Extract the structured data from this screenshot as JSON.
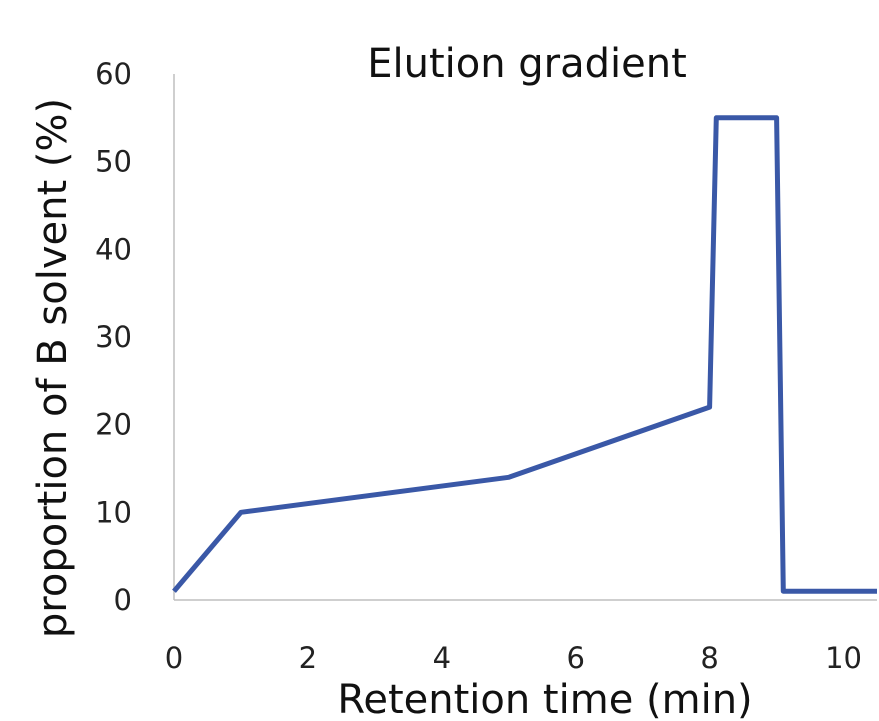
{
  "chart_data": {
    "type": "line",
    "title": "Elution gradient",
    "xlabel": "Retention time (min)",
    "ylabel": "proportion of B solvent (%)",
    "xlim": [
      0,
      10.5
    ],
    "ylim": [
      0,
      60
    ],
    "xticks": [
      0,
      2,
      4,
      6,
      8,
      10
    ],
    "yticks": [
      0,
      10,
      20,
      30,
      40,
      50,
      60
    ],
    "grid": false,
    "legend": "none",
    "series": [
      {
        "color": "#3A58A7",
        "points": [
          [
            0,
            1
          ],
          [
            1,
            10
          ],
          [
            5,
            14
          ],
          [
            8,
            22
          ],
          [
            8.1,
            55
          ],
          [
            9,
            55
          ],
          [
            9.1,
            1
          ],
          [
            10.5,
            1
          ]
        ]
      }
    ]
  }
}
